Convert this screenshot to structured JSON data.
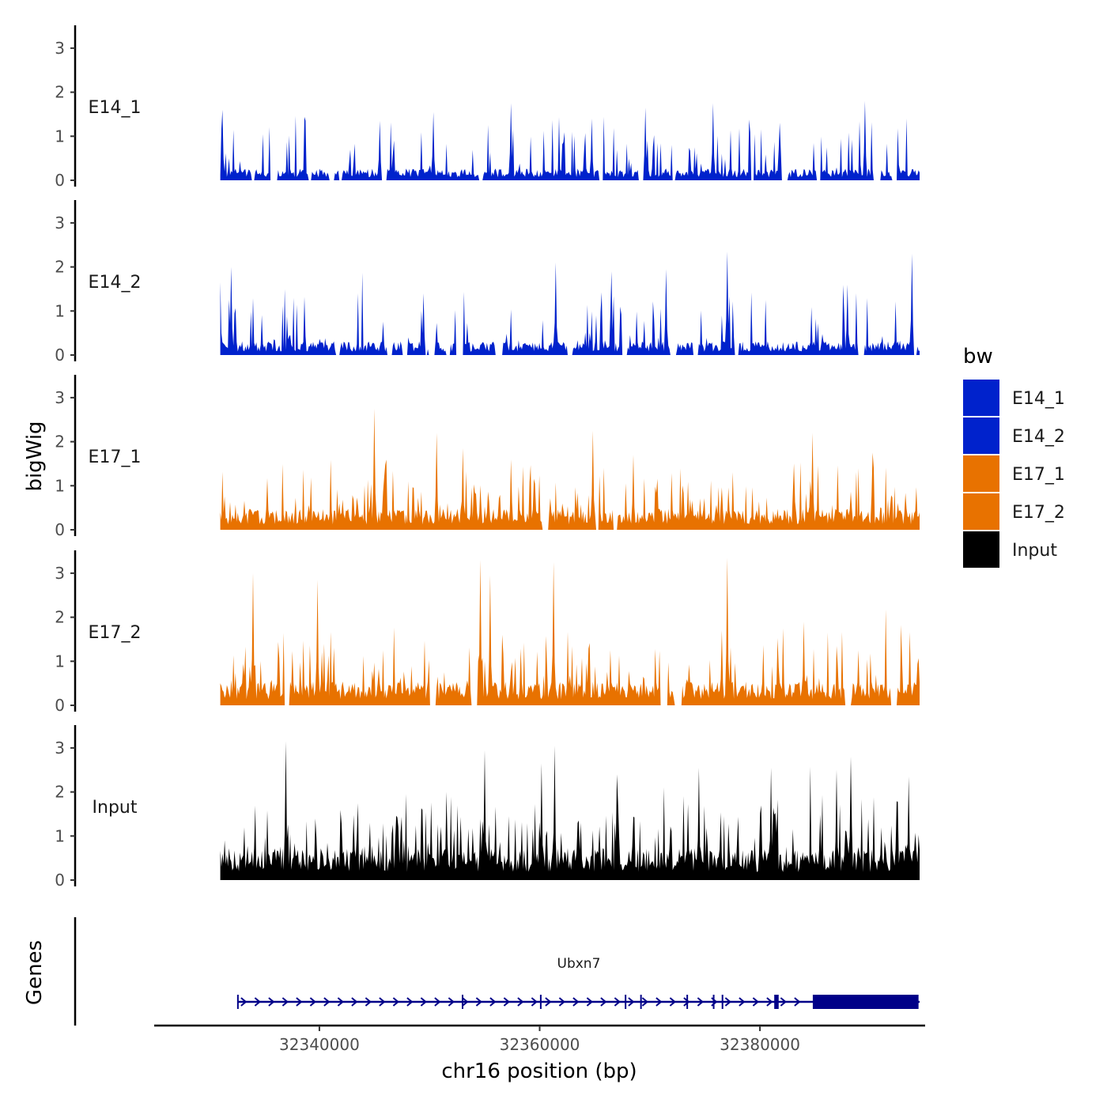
{
  "chart_data": {
    "type": "area",
    "chromosome": "chr16",
    "ylabel": "bigWig",
    "xlabel": "chr16 position (bp)",
    "ylim": [
      0,
      3.4
    ],
    "y_ticks": [
      "0",
      "1",
      "2",
      "3"
    ],
    "x_range": [
      32325000,
      32395000
    ],
    "region": [
      32331000,
      32394500
    ],
    "x_ticks": [
      {
        "value": 32340000,
        "label": "32340000"
      },
      {
        "value": 32360000,
        "label": "32360000"
      },
      {
        "value": 32380000,
        "label": "32380000"
      }
    ],
    "legend": {
      "title": "bw",
      "entries": [
        {
          "label": "E14_1",
          "color": "#0022CC"
        },
        {
          "label": "E14_2",
          "color": "#0022CC"
        },
        {
          "label": "E17_1",
          "color": "#E87200"
        },
        {
          "label": "E17_2",
          "color": "#E87200"
        },
        {
          "label": "Input",
          "color": "#000000"
        }
      ]
    },
    "tracks": [
      {
        "name": "E14_1",
        "color": "#0022CC",
        "seed": 11,
        "base": 0.22,
        "gap_prob": 0.26,
        "peak_prob": 0.12,
        "peaks": [
          {
            "x": 32331200,
            "y": 1.6
          },
          {
            "x": 32345500,
            "y": 1.35
          },
          {
            "x": 32350300,
            "y": 1.55
          },
          {
            "x": 32357400,
            "y": 1.75
          },
          {
            "x": 32364700,
            "y": 1.4
          },
          {
            "x": 32369600,
            "y": 1.65
          },
          {
            "x": 32375700,
            "y": 1.75
          },
          {
            "x": 32389500,
            "y": 1.8
          }
        ]
      },
      {
        "name": "E14_2",
        "color": "#0022CC",
        "seed": 23,
        "base": 0.26,
        "gap_prob": 0.2,
        "peak_prob": 0.14,
        "peaks": [
          {
            "x": 32331000,
            "y": 1.65
          },
          {
            "x": 32332000,
            "y": 2.0
          },
          {
            "x": 32349500,
            "y": 1.4
          },
          {
            "x": 32361500,
            "y": 2.1
          },
          {
            "x": 32366500,
            "y": 1.9
          },
          {
            "x": 32371500,
            "y": 1.95
          },
          {
            "x": 32377000,
            "y": 2.35
          },
          {
            "x": 32388000,
            "y": 1.6
          },
          {
            "x": 32393800,
            "y": 2.3
          }
        ]
      },
      {
        "name": "E17_1",
        "color": "#E87200",
        "seed": 37,
        "base": 0.4,
        "gap_prob": 0.1,
        "peak_prob": 0.18,
        "peaks": [
          {
            "x": 32345000,
            "y": 2.75
          },
          {
            "x": 32350600,
            "y": 2.2
          },
          {
            "x": 32353000,
            "y": 1.85
          },
          {
            "x": 32364800,
            "y": 2.25
          },
          {
            "x": 32368500,
            "y": 1.7
          },
          {
            "x": 32384800,
            "y": 2.2
          },
          {
            "x": 32390200,
            "y": 1.75
          }
        ]
      },
      {
        "name": "E17_2",
        "color": "#E87200",
        "seed": 51,
        "base": 0.45,
        "gap_prob": 0.1,
        "peak_prob": 0.2,
        "peaks": [
          {
            "x": 32334000,
            "y": 3.0
          },
          {
            "x": 32339800,
            "y": 2.85
          },
          {
            "x": 32354600,
            "y": 3.3
          },
          {
            "x": 32355500,
            "y": 2.95
          },
          {
            "x": 32361300,
            "y": 3.25
          },
          {
            "x": 32377000,
            "y": 3.35
          },
          {
            "x": 32376500,
            "y": 1.7
          },
          {
            "x": 32384000,
            "y": 1.9
          }
        ]
      },
      {
        "name": "Input",
        "color": "#000000",
        "seed": 73,
        "base": 0.6,
        "gap_prob": 0.0,
        "peak_prob": 0.24,
        "peaks": [
          {
            "x": 32337000,
            "y": 3.15
          },
          {
            "x": 32351500,
            "y": 2.0
          },
          {
            "x": 32355000,
            "y": 2.95
          },
          {
            "x": 32360200,
            "y": 2.65
          },
          {
            "x": 32361400,
            "y": 3.05
          },
          {
            "x": 32367000,
            "y": 2.4
          },
          {
            "x": 32374500,
            "y": 2.55
          },
          {
            "x": 32381000,
            "y": 2.55
          },
          {
            "x": 32387000,
            "y": 2.5
          },
          {
            "x": 32388200,
            "y": 2.8
          },
          {
            "x": 32393500,
            "y": 2.35
          }
        ]
      }
    ],
    "genes_panel": {
      "title": "Genes",
      "gene": {
        "name": "Ubxn7",
        "start": 32332600,
        "end": 32394500,
        "strand": "+",
        "color": "#000088",
        "thick_blocks": [
          [
            32381300,
            32381700
          ],
          [
            32384800,
            32394400
          ]
        ],
        "exon_marks": [
          32332600,
          32353000,
          32360100,
          32367800,
          32369200,
          32373400,
          32375800,
          32376600,
          32381400
        ]
      }
    }
  }
}
